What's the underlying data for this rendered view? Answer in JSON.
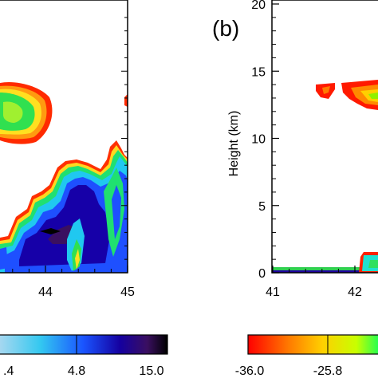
{
  "chart_data": [
    {
      "type": "heatmap",
      "panel_label": "",
      "x_ticks": [
        "44",
        "45"
      ],
      "y_ticks": [],
      "ylabel": "",
      "colorbar_ticks": [
        ".4",
        "4.8",
        "15.0"
      ],
      "colorbar_colors": [
        "#aad8f0",
        "#33c8f0",
        "#1a55ff",
        "#1500a0",
        "#3a0f60",
        "#000000"
      ]
    },
    {
      "type": "heatmap",
      "panel_label": "(b)",
      "x_ticks": [
        "41",
        "42"
      ],
      "y_ticks": [
        "0",
        "5",
        "10",
        "15",
        "20"
      ],
      "y_values": [
        0,
        5,
        10,
        15,
        20
      ],
      "ylim": [
        0,
        20
      ],
      "ylabel": "Height (km)",
      "colorbar_ticks": [
        "-36.0",
        "-25.8"
      ],
      "colorbar_colors": [
        "#ff0000",
        "#ff7a00",
        "#ffd000",
        "#c8ff00",
        "#00ff60"
      ]
    }
  ]
}
